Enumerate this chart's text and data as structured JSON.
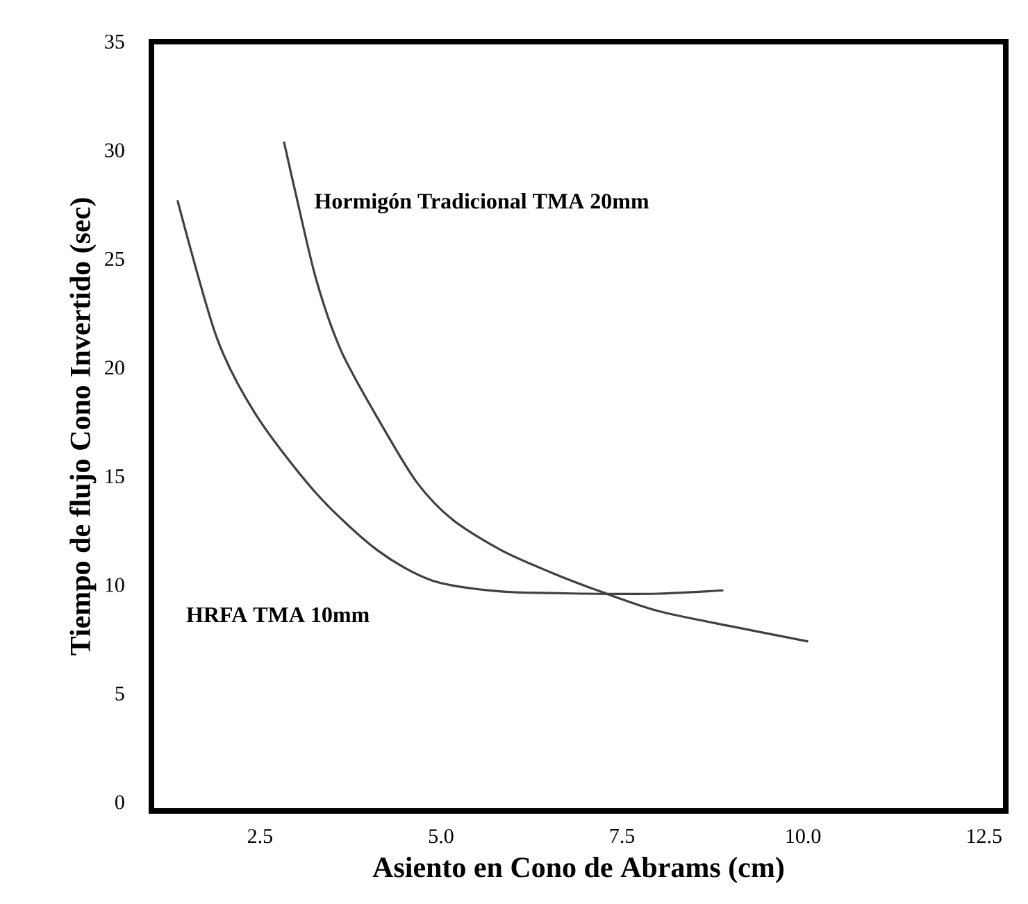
{
  "chart_data": {
    "type": "line",
    "xlabel": "Asiento en Cono de Abrams (cm)",
    "ylabel": "Tiempo de flujo Cono Invertido (sec)",
    "series": [
      {
        "name": "HRFA TMA 10mm",
        "color": "#404040",
        "x": [
          1.36,
          1.9,
          2.45,
          3.28,
          4.12,
          4.88,
          5.83,
          7.0,
          8.0,
          8.9
        ],
        "values": [
          27.7,
          21.4,
          17.8,
          14.2,
          11.6,
          10.2,
          9.7,
          9.6,
          9.6,
          9.75
        ]
      },
      {
        "name": "Hormigón Tradicional TMA 20mm",
        "color": "#404040",
        "x": [
          2.83,
          3.0,
          3.28,
          3.63,
          4.19,
          4.67,
          5.16,
          5.83,
          6.5,
          7.2,
          8.0,
          9.0,
          10.07
        ],
        "values": [
          30.4,
          27.9,
          24.0,
          20.7,
          17.3,
          14.7,
          13.0,
          11.6,
          10.6,
          9.7,
          8.8,
          8.1,
          7.4
        ]
      }
    ],
    "xlim": [
      1.0,
      12.8
    ],
    "ylim": [
      -0.4,
      35
    ],
    "xticks": [
      2.5,
      {
        "value": 5,
        "label": "5.0"
      },
      7.5,
      {
        "value": 10,
        "label": "10.0"
      },
      12.5
    ],
    "yticks": [
      0,
      5,
      10,
      15,
      20,
      25,
      30,
      35
    ],
    "grid": false,
    "legend": false,
    "marker": "none",
    "line_style": "solid"
  }
}
